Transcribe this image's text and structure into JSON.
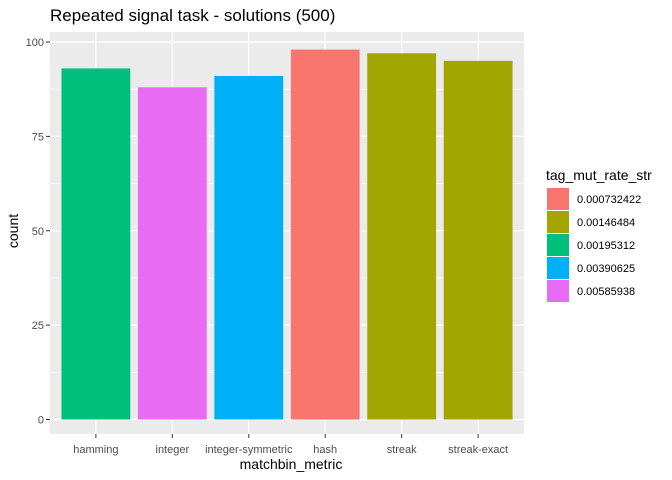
{
  "chart_data": {
    "type": "bar",
    "title": "Repeated signal task - solutions (500)",
    "xlabel": "matchbin_metric",
    "ylabel": "count",
    "categories": [
      "hamming",
      "integer",
      "integer-symmetric",
      "hash",
      "streak",
      "streak-exact"
    ],
    "values": [
      93,
      88,
      91,
      98,
      97,
      95
    ],
    "fill_groups": [
      "0.00195312",
      "0.00585938",
      "0.00390625",
      "0.000732422",
      "0.00146484",
      "0.00146484"
    ],
    "ylim": [
      0,
      100
    ],
    "yticks": [
      0,
      25,
      50,
      75,
      100
    ],
    "grid": true,
    "panel_background": "#ebebeb",
    "legend": {
      "title": "tag_mut_rate_str",
      "position": "right",
      "entries": [
        {
          "label": "0.000732422",
          "color": "#f8766d"
        },
        {
          "label": "0.00146484",
          "color": "#a3a500"
        },
        {
          "label": "0.00195312",
          "color": "#00bf7d"
        },
        {
          "label": "0.00390625",
          "color": "#00b0f6"
        },
        {
          "label": "0.00585938",
          "color": "#e76bf3"
        }
      ]
    }
  }
}
